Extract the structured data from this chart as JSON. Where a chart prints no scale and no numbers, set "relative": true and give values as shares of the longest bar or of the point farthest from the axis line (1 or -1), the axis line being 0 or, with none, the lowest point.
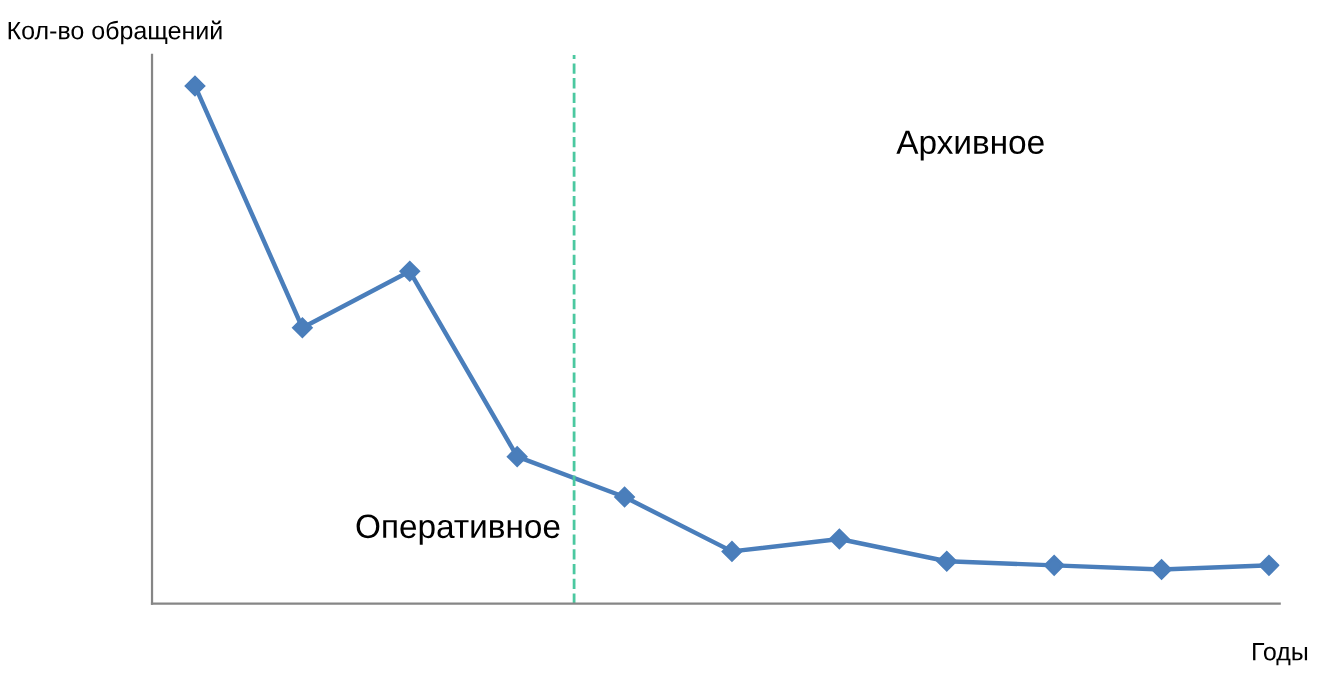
{
  "chart_data": {
    "type": "line",
    "relative": true,
    "ylabel": "Кол-во обращений",
    "xlabel": "Годы",
    "categories": [
      null,
      null,
      null,
      null,
      null,
      null,
      null,
      null,
      null,
      null,
      null
    ],
    "series": [
      {
        "color": "#4a7ebb",
        "values": [
          1,
          0.533,
          0.642,
          0.284,
          0.206,
          0.101,
          0.125,
          0.082,
          0.074,
          0.066,
          0.074
        ]
      }
    ],
    "marker": "diamond",
    "line_style": "solid",
    "grid": false,
    "legend": false,
    "annotations": [
      "Оперативное",
      "Архивное"
    ]
  }
}
